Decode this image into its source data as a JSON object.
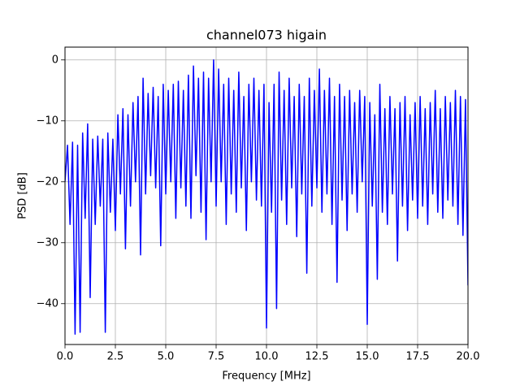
{
  "chart_data": {
    "type": "line",
    "title": "channel073 higain",
    "xlabel": "Frequency [MHz]",
    "ylabel": "PSD [dB]",
    "color": "#0000ff",
    "grid": true,
    "xlim": [
      0,
      20
    ],
    "ylim": [
      -46.7,
      2.1
    ],
    "xticks": [
      {
        "value": 0,
        "label": "0.0"
      },
      2.5,
      {
        "value": 5,
        "label": "5.0"
      },
      7.5,
      {
        "value": 10,
        "label": "10.0"
      },
      12.5,
      {
        "value": 15,
        "label": "15.0"
      },
      17.5,
      {
        "value": 20,
        "label": "20.0"
      }
    ],
    "yticks": [
      {
        "value": -40,
        "label": "−40"
      },
      {
        "value": -30,
        "label": "−30"
      },
      {
        "value": -20,
        "label": "−20"
      },
      {
        "value": -10,
        "label": "−10"
      },
      0
    ],
    "x": [
      0,
      0.125,
      0.25,
      0.375,
      0.5,
      0.625,
      0.75,
      0.875,
      1,
      1.125,
      1.25,
      1.375,
      1.5,
      1.625,
      1.75,
      1.875,
      2,
      2.125,
      2.25,
      2.375,
      2.5,
      2.625,
      2.75,
      2.875,
      3,
      3.125,
      3.25,
      3.375,
      3.5,
      3.625,
      3.75,
      3.875,
      4,
      4.125,
      4.25,
      4.375,
      4.5,
      4.625,
      4.75,
      4.875,
      5,
      5.125,
      5.25,
      5.375,
      5.5,
      5.625,
      5.75,
      5.875,
      6,
      6.125,
      6.25,
      6.375,
      6.5,
      6.625,
      6.75,
      6.875,
      7,
      7.125,
      7.25,
      7.375,
      7.5,
      7.625,
      7.75,
      7.875,
      8,
      8.125,
      8.25,
      8.375,
      8.5,
      8.625,
      8.75,
      8.875,
      9,
      9.125,
      9.25,
      9.375,
      9.5,
      9.625,
      9.75,
      9.875,
      10,
      10.125,
      10.25,
      10.375,
      10.5,
      10.625,
      10.75,
      10.875,
      11,
      11.125,
      11.25,
      11.375,
      11.5,
      11.625,
      11.75,
      11.875,
      12,
      12.125,
      12.25,
      12.375,
      12.5,
      12.625,
      12.75,
      12.875,
      13,
      13.125,
      13.25,
      13.375,
      13.5,
      13.625,
      13.75,
      13.875,
      14,
      14.125,
      14.25,
      14.375,
      14.5,
      14.625,
      14.75,
      14.875,
      15,
      15.125,
      15.25,
      15.375,
      15.5,
      15.625,
      15.75,
      15.875,
      16,
      16.125,
      16.25,
      16.375,
      16.5,
      16.625,
      16.75,
      16.875,
      17,
      17.125,
      17.25,
      17.375,
      17.5,
      17.625,
      17.75,
      17.875,
      18,
      18.125,
      18.25,
      18.375,
      18.5,
      18.625,
      18.75,
      18.875,
      19,
      19.125,
      19.25,
      19.375,
      19.5,
      19.625,
      19.75,
      19.875,
      20
    ],
    "values": [
      -20,
      -14,
      -27,
      -13.5,
      -45,
      -14,
      -44.7,
      -12,
      -26,
      -10.5,
      -39,
      -13,
      -27,
      -12.5,
      -24,
      -13,
      -44.7,
      -12,
      -25,
      -13,
      -28,
      -9,
      -22,
      -8,
      -31,
      -9,
      -24,
      -7,
      -20,
      -6,
      -32,
      -3,
      -22,
      -5.5,
      -19,
      -4.5,
      -21,
      -6,
      -30.5,
      -4,
      -22,
      -5,
      -20,
      -4,
      -26,
      -3.5,
      -21,
      -5,
      -24,
      -2.5,
      -26,
      -1,
      -19,
      -3,
      -25,
      -2,
      -29.5,
      -3,
      -20,
      0,
      -24,
      -1.5,
      -20,
      -4,
      -27,
      -3,
      -22,
      -5,
      -25,
      -2,
      -21,
      -6,
      -28,
      -4,
      -20,
      -3,
      -23,
      -5,
      -24,
      -4,
      -44,
      -7,
      -25,
      -4,
      -40.8,
      -2,
      -23,
      -5,
      -27,
      -3,
      -21,
      -6,
      -29,
      -4,
      -22,
      -6,
      -35,
      -3,
      -24,
      -5,
      -21,
      -1.5,
      -25,
      -5,
      -22,
      -3,
      -27,
      -6,
      -36.5,
      -4,
      -23,
      -6,
      -28,
      -5,
      -22,
      -7,
      -25,
      -5,
      -20,
      -6,
      -43.4,
      -7,
      -24,
      -9,
      -36,
      -4,
      -25,
      -8,
      -27,
      -6,
      -22,
      -8,
      -33,
      -7,
      -24,
      -6,
      -28,
      -9,
      -23,
      -7,
      -26,
      -6,
      -24,
      -8,
      -27,
      -7,
      -22,
      -5,
      -25,
      -8,
      -26,
      -6,
      -23,
      -7,
      -24,
      -5,
      -27,
      -6,
      -28.8,
      -6.5,
      -37
    ]
  }
}
